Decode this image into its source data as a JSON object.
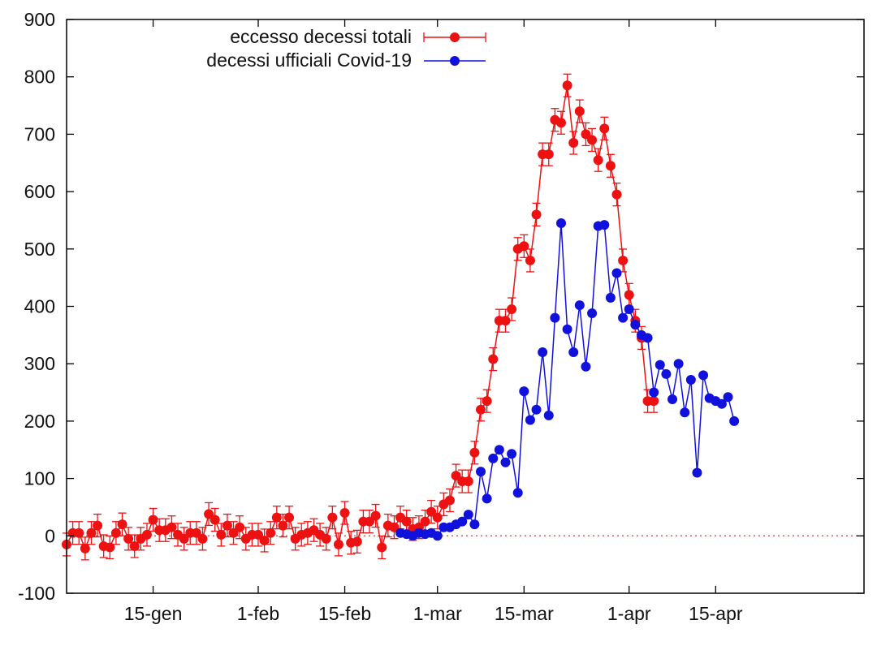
{
  "chart_data": {
    "type": "line",
    "title": "",
    "xlabel": "",
    "ylabel": "",
    "ylim": [
      -100,
      900
    ],
    "yticks": [
      -100,
      0,
      100,
      200,
      300,
      400,
      500,
      600,
      700,
      800,
      900
    ],
    "x_unit": "day of year 2020 (1 = 1 January)",
    "xlim": [
      1,
      130
    ],
    "xticks": [
      {
        "day": 15,
        "label": "15-gen"
      },
      {
        "day": 32,
        "label": "1-feb"
      },
      {
        "day": 46,
        "label": "15-feb"
      },
      {
        "day": 61,
        "label": "1-mar"
      },
      {
        "day": 75,
        "label": "15-mar"
      },
      {
        "day": 92,
        "label": "1-apr"
      },
      {
        "day": 106,
        "label": "15-apr"
      }
    ],
    "grid": false,
    "legend_position": "top-left",
    "zero_line": true,
    "colors": {
      "excess": "#ee1111",
      "official": "#1111dd",
      "zero_line": "#cc6666",
      "axis": "#000000"
    },
    "series": [
      {
        "name": "eccesso decessi totali",
        "color": "#ee1111",
        "error_bars": true,
        "start_day": 1,
        "values": [
          -15,
          5,
          5,
          -22,
          5,
          18,
          -18,
          -20,
          5,
          20,
          -5,
          -18,
          -5,
          2,
          28,
          10,
          10,
          15,
          2,
          -5,
          5,
          5,
          -5,
          38,
          28,
          2,
          18,
          5,
          15,
          -5,
          2,
          2,
          -8,
          5,
          32,
          18,
          32,
          -5,
          2,
          5,
          10,
          2,
          -5,
          32,
          -15,
          40,
          -12,
          -10,
          25,
          25,
          35,
          -20,
          18,
          15,
          32,
          25,
          12,
          15,
          25,
          42,
          32,
          55,
          62,
          105,
          95,
          95,
          145,
          220,
          235,
          308,
          375,
          375,
          395,
          500,
          505,
          480,
          560,
          665,
          665,
          725,
          720,
          785,
          685,
          740,
          700,
          690,
          655,
          710,
          645,
          595,
          480,
          420,
          375,
          345,
          235,
          235
        ]
      },
      {
        "name": "decessi ufficiali Covid-19",
        "color": "#1111dd",
        "error_bars": false,
        "start_day": 55,
        "values": [
          5,
          3,
          0,
          5,
          3,
          5,
          0,
          15,
          15,
          20,
          25,
          37,
          20,
          112,
          65,
          135,
          150,
          128,
          143,
          75,
          252,
          202,
          220,
          320,
          210,
          380,
          545,
          360,
          320,
          402,
          295,
          388,
          540,
          542,
          415,
          458,
          380,
          395,
          368,
          350,
          345,
          250,
          298,
          282,
          238,
          300,
          215,
          272,
          110,
          280,
          240,
          235,
          230,
          242,
          200
        ]
      }
    ]
  }
}
